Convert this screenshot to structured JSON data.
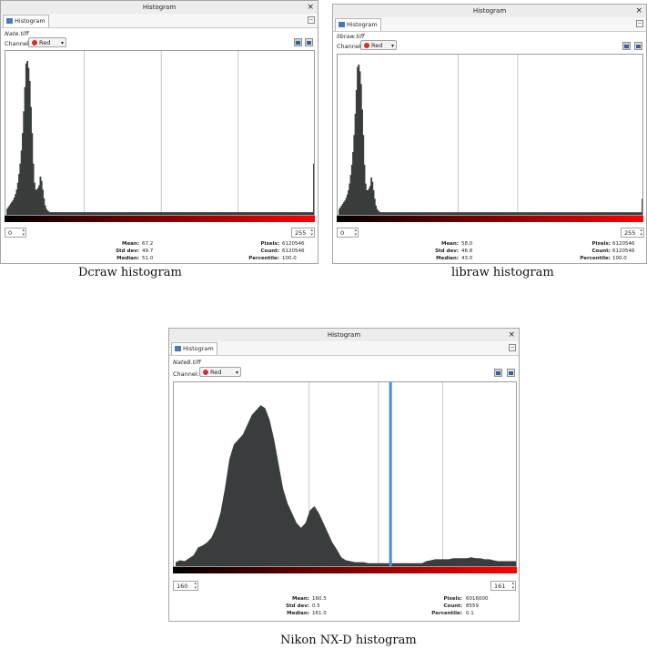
{
  "panels": [
    {
      "id": "dcraw",
      "window_title": "Histogram",
      "tab_label": "Histogram",
      "file_name": "Nate.tiff",
      "channel_label": "Channel:",
      "channel_value": "Red",
      "range_start": "0",
      "range_end": "255",
      "stats": {
        "mean_label": "Mean:",
        "mean": "67.2",
        "std_label": "Std dev:",
        "std": "49.7",
        "median_label": "Median:",
        "median": "51.0",
        "pixels_label": "Pixels:",
        "pixels": "6120546",
        "count_label": "Count:",
        "count": "6120546",
        "percentile_label": "Percentile:",
        "percentile": "100.0"
      },
      "caption": "Dcraw histogram"
    },
    {
      "id": "libraw",
      "window_title": "Histogram",
      "tab_label": "Histogram",
      "file_name": "libraw.tiff",
      "channel_label": "Channel:",
      "channel_value": "Red",
      "range_start": "0",
      "range_end": "255",
      "stats": {
        "mean_label": "Mean:",
        "mean": "58.0",
        "std_label": "Std dev:",
        "std": "46.8",
        "median_label": "Median:",
        "median": "43.0",
        "pixels_label": "Pixels:",
        "pixels": "6120546",
        "count_label": "Count:",
        "count": "6120546",
        "percentile_label": "Percentile:",
        "percentile": "100.0"
      },
      "caption": "libraw histogram"
    },
    {
      "id": "nikon",
      "window_title": "Histogram",
      "tab_label": "Histogram",
      "file_name": "Nate8.tiff",
      "channel_label": "Channel:",
      "channel_value": "Red",
      "range_start": "160",
      "range_end": "161",
      "stats": {
        "mean_label": "Mean:",
        "mean": "160.5",
        "std_label": "Std dev:",
        "std": "0.5",
        "median_label": "Median:",
        "median": "161.0",
        "pixels_label": "Pixels:",
        "pixels": "6016000",
        "count_label": "Count:",
        "count": "8559",
        "percentile_label": "Percentile:",
        "percentile": "0.1"
      },
      "caption": "Nikon NX-D histogram"
    }
  ],
  "colors": {
    "bars": "#3a3d3d",
    "selection": "#4a8cd0",
    "grid": "#b8b8b8"
  },
  "icons": [
    "close-icon",
    "histogram-tab-icon",
    "minimize-icon",
    "channel-color-icon",
    "dropdown-arrow-icon",
    "linear-view-icon",
    "log-view-icon",
    "spin-arrows-icon"
  ],
  "chart_data": [
    {
      "type": "bar",
      "xlim": [
        0,
        255
      ],
      "description_source": "dcraw histogram (red channel), comb-like spiky bars",
      "values": [
        8,
        10,
        12,
        14,
        16,
        18,
        21,
        25,
        30,
        38,
        48,
        60,
        75,
        95,
        120,
        148,
        175,
        178,
        170,
        155,
        125,
        95,
        60,
        38,
        30,
        30,
        32,
        35,
        45,
        40,
        30,
        20,
        12,
        8,
        6,
        5,
        4,
        4,
        4,
        4,
        4,
        4,
        4,
        4,
        4,
        4,
        4,
        4,
        4,
        4,
        4,
        4,
        4,
        4,
        4,
        4,
        4,
        4,
        4,
        4,
        4,
        4,
        4,
        4,
        4,
        4,
        4,
        4,
        4,
        4,
        4,
        4,
        4,
        4,
        4,
        4,
        4,
        4,
        4,
        4,
        4,
        4,
        4,
        4,
        4,
        4,
        4,
        4,
        4,
        4,
        4,
        4,
        4,
        4,
        4,
        4,
        4,
        4,
        4,
        4,
        4,
        4,
        4,
        4,
        4,
        4,
        4,
        4,
        4,
        4,
        4,
        4,
        4,
        4,
        4,
        4,
        4,
        4,
        4,
        4,
        4,
        4,
        4,
        4,
        4,
        4,
        4,
        4,
        4,
        4,
        4,
        4,
        4,
        4,
        4,
        4,
        4,
        4,
        4,
        4,
        4,
        4,
        4,
        4,
        4,
        4,
        4,
        4,
        4,
        4,
        4,
        4,
        4,
        4,
        4,
        4,
        4,
        4,
        4,
        4,
        4,
        4,
        4,
        4,
        4,
        4,
        4,
        4,
        4,
        4,
        4,
        4,
        4,
        4,
        4,
        4,
        4,
        4,
        4,
        4,
        4,
        4,
        4,
        4,
        4,
        4,
        4,
        4,
        4,
        4,
        4,
        4,
        4,
        4,
        4,
        4,
        4,
        4,
        4,
        4,
        4,
        4,
        4,
        4,
        4,
        4,
        4,
        4,
        4,
        4,
        4,
        4,
        4,
        4,
        4,
        4,
        4,
        4,
        4,
        4,
        4,
        4,
        4,
        4,
        4,
        4,
        4,
        4,
        4,
        4,
        4,
        4,
        4,
        4,
        4,
        4,
        4,
        4,
        4,
        4,
        4,
        4,
        4,
        4,
        4,
        4,
        4,
        4,
        4,
        4,
        4,
        4,
        4,
        4,
        4,
        4,
        4,
        4,
        4,
        60
      ],
      "ylim": [
        0,
        180
      ],
      "gridlines_x": [
        64,
        128,
        192
      ]
    },
    {
      "type": "bar",
      "xlim": [
        0,
        255
      ],
      "values": [
        8,
        10,
        12,
        14,
        16,
        18,
        21,
        25,
        30,
        38,
        48,
        60,
        75,
        95,
        120,
        148,
        175,
        178,
        170,
        155,
        125,
        95,
        60,
        38,
        30,
        30,
        32,
        35,
        45,
        40,
        30,
        20,
        12,
        8,
        6,
        5,
        4,
        4,
        4,
        4,
        4,
        4,
        4,
        4,
        4,
        4,
        4,
        4,
        4,
        4,
        4,
        4,
        4,
        4,
        4,
        4,
        4,
        4,
        4,
        4,
        4,
        4,
        4,
        4,
        4,
        4,
        4,
        4,
        4,
        4,
        4,
        4,
        4,
        4,
        4,
        4,
        4,
        4,
        4,
        4,
        4,
        4,
        4,
        4,
        4,
        4,
        4,
        4,
        4,
        4,
        4,
        4,
        4,
        4,
        4,
        4,
        4,
        4,
        4,
        4,
        4,
        4,
        4,
        4,
        4,
        4,
        4,
        4,
        4,
        4,
        4,
        4,
        4,
        4,
        4,
        4,
        4,
        4,
        4,
        4,
        4,
        4,
        4,
        4,
        4,
        4,
        4,
        4,
        4,
        4,
        4,
        4,
        4,
        4,
        4,
        4,
        4,
        4,
        4,
        4,
        4,
        4,
        4,
        4,
        4,
        4,
        4,
        4,
        4,
        4,
        4,
        4,
        4,
        4,
        4,
        4,
        4,
        4,
        4,
        4,
        4,
        4,
        4,
        4,
        4,
        4,
        4,
        4,
        4,
        4,
        4,
        4,
        4,
        4,
        4,
        4,
        4,
        4,
        4,
        4,
        4,
        4,
        4,
        4,
        4,
        4,
        4,
        4,
        4,
        4,
        4,
        4,
        4,
        4,
        4,
        4,
        4,
        4,
        4,
        4,
        4,
        4,
        4,
        4,
        4,
        4,
        4,
        4,
        4,
        4,
        4,
        4,
        4,
        4,
        4,
        4,
        4,
        4,
        4,
        4,
        4,
        4,
        4,
        4,
        4,
        4,
        4,
        4,
        4,
        4,
        4,
        4,
        4,
        4,
        4,
        4,
        4,
        4,
        4,
        4,
        4,
        4,
        4,
        4,
        4,
        4,
        4,
        4,
        4,
        4,
        4,
        4,
        4,
        4,
        4,
        4,
        4,
        4,
        4,
        4,
        4,
        4,
        4,
        4,
        4,
        4,
        20
      ],
      "ylim": [
        0,
        180
      ],
      "gridlines_x": [
        100,
        150
      ]
    },
    {
      "type": "area",
      "xlim": [
        0,
        255
      ],
      "values": [
        5,
        7,
        6,
        9,
        12,
        20,
        22,
        25,
        30,
        40,
        55,
        80,
        110,
        125,
        130,
        135,
        145,
        155,
        160,
        165,
        162,
        150,
        130,
        105,
        80,
        65,
        55,
        45,
        40,
        45,
        58,
        62,
        55,
        45,
        35,
        25,
        18,
        10,
        7,
        6,
        5,
        5,
        5,
        4,
        4,
        4,
        4,
        4,
        4,
        4,
        4,
        4,
        4,
        4,
        4,
        4,
        6,
        7,
        8,
        8,
        8,
        8,
        9,
        9,
        9,
        9,
        10,
        9,
        9,
        8,
        8,
        7,
        6,
        6,
        6,
        6,
        6
      ],
      "ylim": [
        0,
        180
      ],
      "selection_x": [
        160,
        161
      ],
      "gridlines_x": [
        100,
        152,
        200
      ]
    }
  ]
}
